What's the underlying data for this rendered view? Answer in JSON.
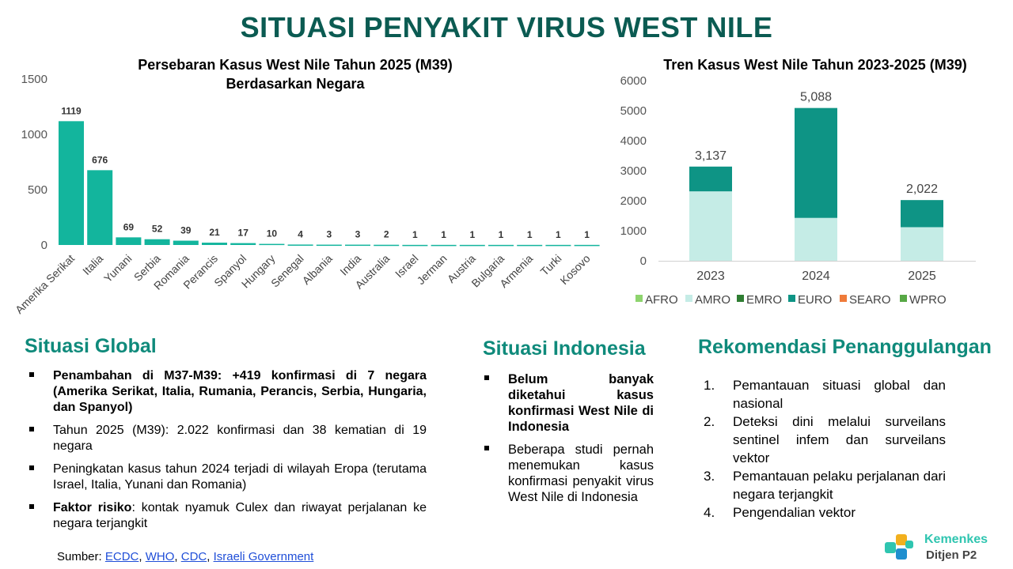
{
  "title": "SITUASI PENYAKIT VIRUS WEST NILE",
  "chart_data": [
    {
      "type": "bar",
      "title_line1": "Persebaran Kasus West Nile Tahun 2025 (M39)",
      "title_line2": "Berdasarkan Negara",
      "categories": [
        "Amerika Serikat",
        "Italia",
        "Yunani",
        "Serbia",
        "Romania",
        "Perancis",
        "Spanyol",
        "Hungary",
        "Senegal",
        "Albania",
        "India",
        "Australia",
        "Israel",
        "Jerman",
        "Austria",
        "Bulgaria",
        "Armenia",
        "Turki",
        "Kosovo"
      ],
      "values": [
        1119,
        676,
        69,
        52,
        39,
        21,
        17,
        10,
        4,
        3,
        3,
        2,
        1,
        1,
        1,
        1,
        1,
        1,
        1
      ],
      "yticks": [
        0,
        500,
        1000,
        1500
      ],
      "ylim": [
        0,
        1500
      ],
      "color": "#13b59d"
    },
    {
      "type": "bar",
      "stacked": true,
      "title": "Tren Kasus West Nile Tahun 2023-2025 (M39)",
      "categories": [
        "2023",
        "2024",
        "2025"
      ],
      "series": [
        {
          "name": "AFRO",
          "color": "#8ed46e",
          "values": [
            0,
            0,
            0
          ]
        },
        {
          "name": "AMRO",
          "color": "#c5ece6",
          "values": [
            2312,
            1428,
            1119
          ]
        },
        {
          "name": "EMRO",
          "color": "#2e7d32",
          "values": [
            0,
            0,
            0
          ]
        },
        {
          "name": "EURO",
          "color": "#0e9485",
          "values": [
            825,
            3660,
            903
          ]
        },
        {
          "name": "SEARO",
          "color": "#ef7b3a",
          "values": [
            0,
            0,
            0
          ]
        },
        {
          "name": "WPRO",
          "color": "#57a845",
          "values": [
            0,
            0,
            0
          ]
        }
      ],
      "totals": [
        "3,137",
        "5,088",
        "2,022"
      ],
      "yticks": [
        0,
        1000,
        2000,
        3000,
        4000,
        5000,
        6000
      ],
      "ylim": [
        0,
        6000
      ],
      "legend_position": "bottom"
    }
  ],
  "global": {
    "title": "Situasi Global",
    "items": [
      {
        "bold": "Penambahan di M37-M39: +419 konfirmasi di 7 negara (Amerika Serikat, Italia, Rumania, Perancis, Serbia, Hungaria, dan Spanyol)",
        "text": ""
      },
      {
        "bold": "",
        "text": "Tahun 2025 (M39): 2.022 konfirmasi dan 38 kematian di 19 negara"
      },
      {
        "bold": "",
        "text": "Peningkatan kasus tahun 2024 terjadi di wilayah Eropa (terutama Israel, Italia, Yunani dan Romania)"
      },
      {
        "bold": "Faktor risiko",
        "text": ": kontak nyamuk Culex dan riwayat perjalanan ke negara terjangkit"
      }
    ]
  },
  "indonesia": {
    "title": "Situasi Indonesia",
    "items": [
      {
        "bold": "Belum banyak diketahui kasus konfirmasi West Nile di Indonesia",
        "text": ""
      },
      {
        "bold": "",
        "text": "Beberapa studi pernah menemukan kasus konfirmasi penyakit virus West Nile di Indonesia"
      }
    ]
  },
  "rekomendasi": {
    "title": "Rekomendasi Penanggulangan",
    "items": [
      {
        "num": "1.",
        "text": "Pemantauan situasi global dan nasional"
      },
      {
        "num": "2.",
        "text": "Deteksi dini melalui surveilans sentinel infem dan surveilans vektor"
      },
      {
        "num": "3.",
        "text": "Pemantauan pelaku perjalanan dari negara terjangkit"
      },
      {
        "num": "4.",
        "text": "Pengendalian vektor"
      }
    ]
  },
  "source": {
    "label": "Sumber: ",
    "links": [
      "ECDC",
      "WHO",
      "CDC",
      "Israeli Government"
    ],
    "separator": ", "
  },
  "logo": {
    "name": "Kemenkes",
    "sub": "Ditjen P2"
  }
}
